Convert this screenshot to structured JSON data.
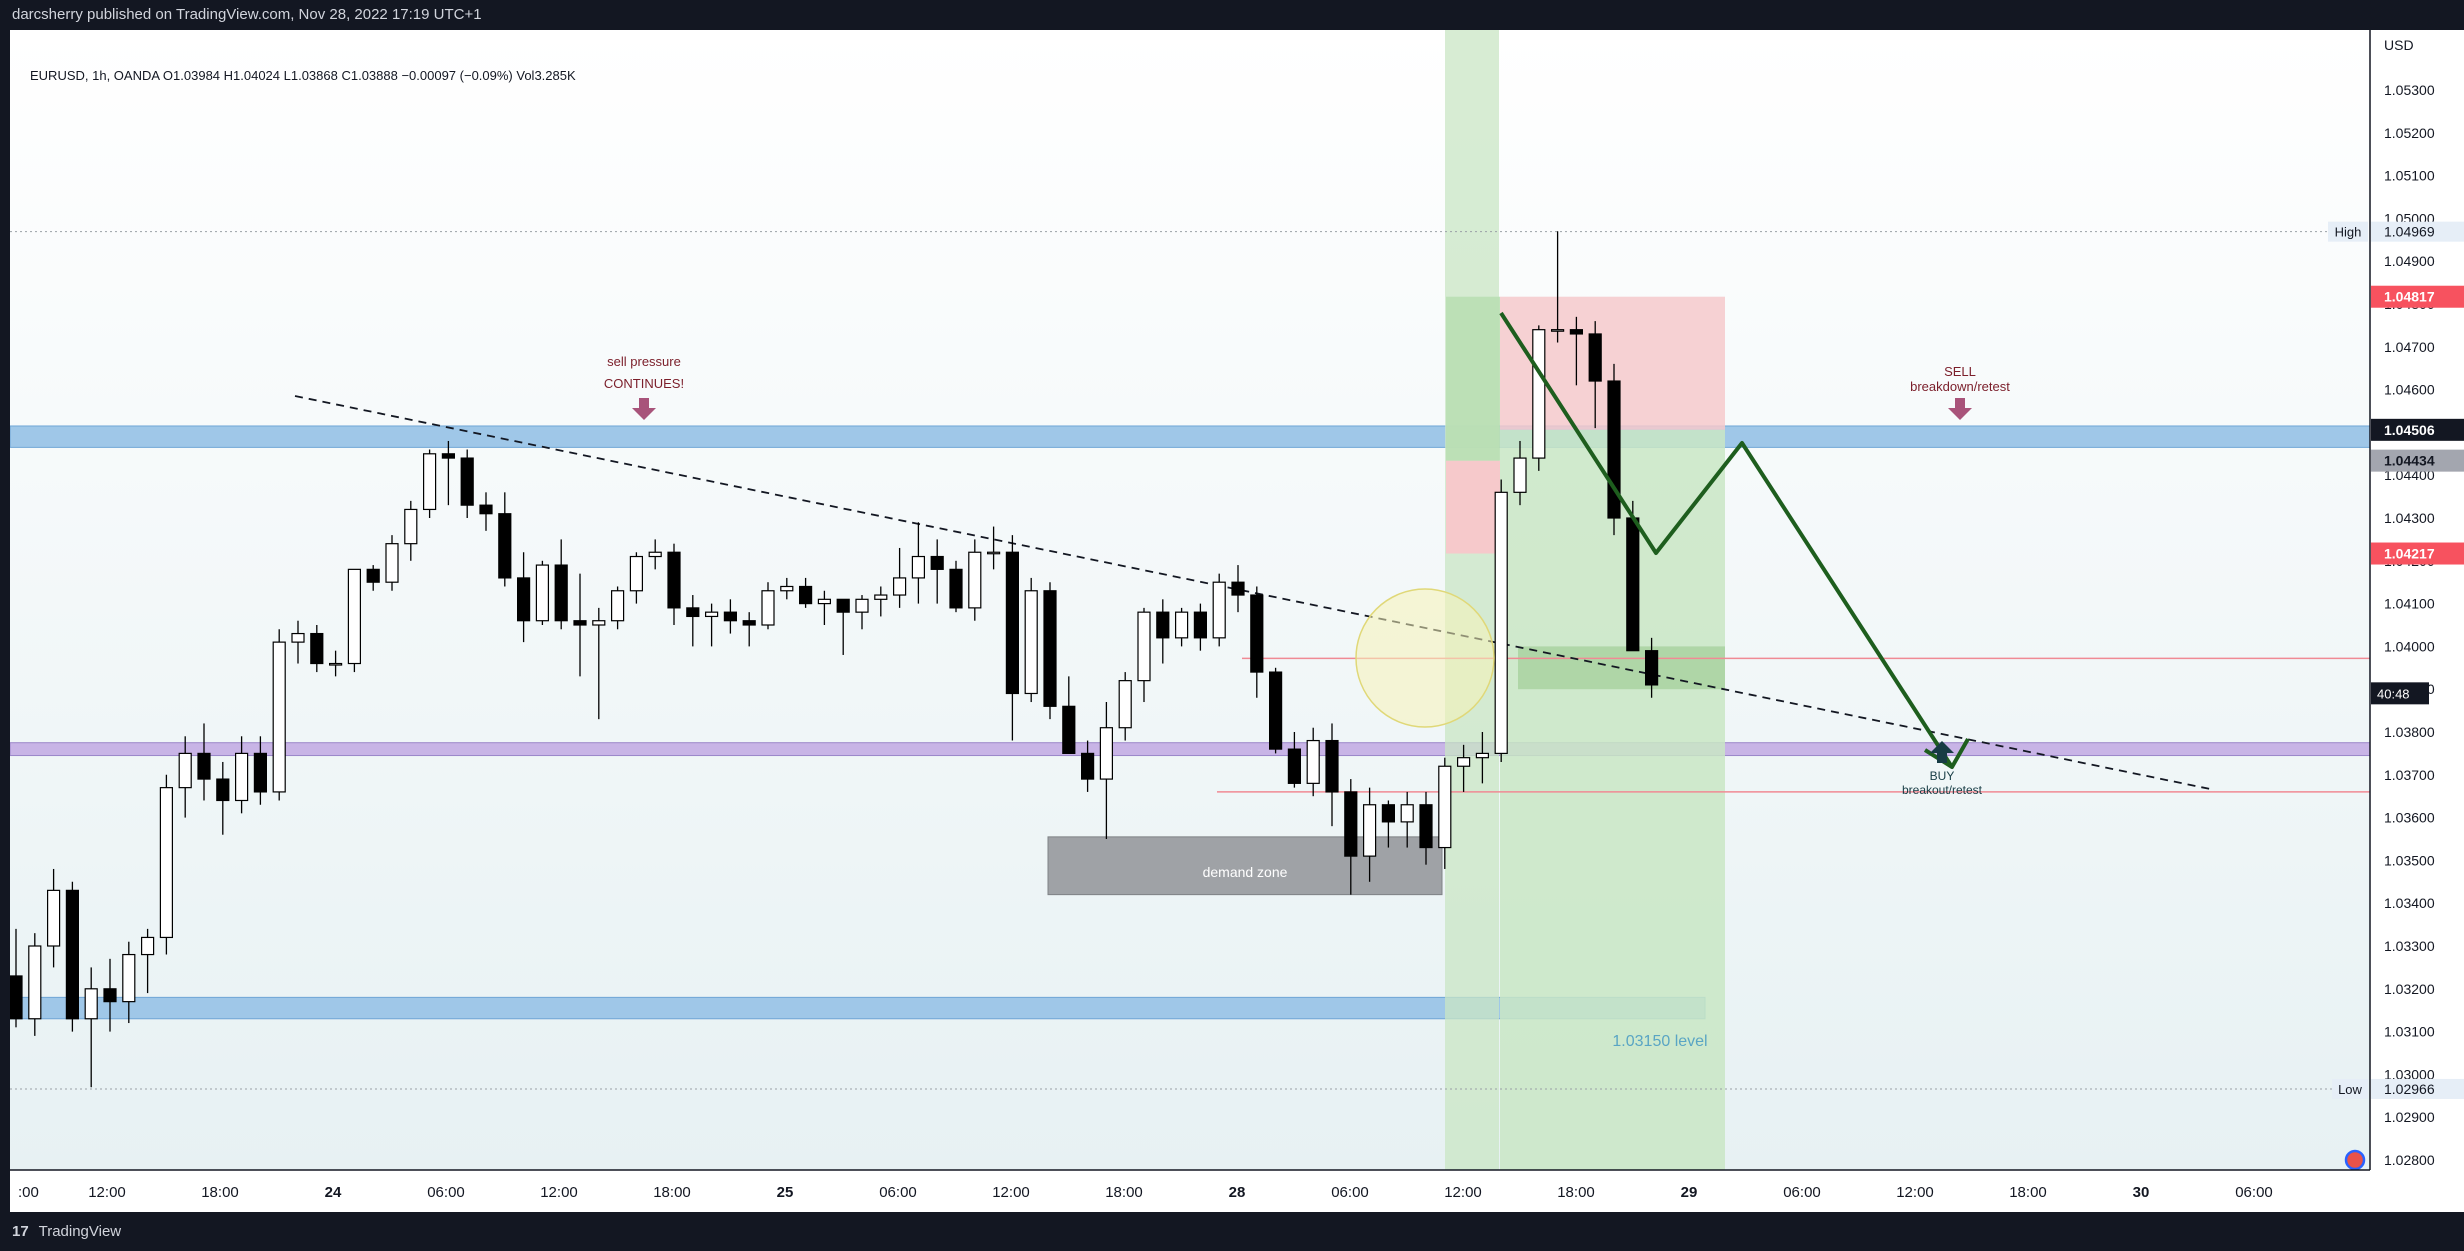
{
  "header": {
    "published": "darcsherry published on TradingView.com, Nov 28, 2022 17:19 UTC+1"
  },
  "footer": {
    "brand": "TradingView",
    "logo_mark": "17"
  },
  "legend": {
    "ohlc": "EURUSD, 1h, OANDA  O1.03984  H1.04024  L1.03868  C1.03888  −0.00097 (−0.09%)  Vol3.285K"
  },
  "price_axis": {
    "currency": "USD",
    "ticks": [
      "1.05300",
      "1.05200",
      "1.05100",
      "1.05000",
      "1.04900",
      "1.04800",
      "1.04700",
      "1.04600",
      "1.04500",
      "1.04400",
      "1.04300",
      "1.04200",
      "1.04100",
      "1.04000",
      "1.03900",
      "1.03800",
      "1.03700",
      "1.03600",
      "1.03500",
      "1.03400",
      "1.03300",
      "1.03200",
      "1.03100",
      "1.03000",
      "1.02900",
      "1.02800"
    ],
    "high_label": "High",
    "high_value": "1.04969",
    "low_label": "Low",
    "low_value": "1.02966",
    "badges": [
      {
        "value": "1.04817",
        "price": 1.04817,
        "bg": "#f7525f",
        "fg": "#ffffff"
      },
      {
        "value": "1.04506",
        "price": 1.04506,
        "bg": "#131722",
        "fg": "#ffffff"
      },
      {
        "value": "1.04434",
        "price": 1.04434,
        "bg": "#a3a6af",
        "fg": "#131722"
      },
      {
        "value": "1.04217",
        "price": 1.04217,
        "bg": "#f7525f",
        "fg": "#ffffff"
      }
    ],
    "countdown": "40:48"
  },
  "time_axis": {
    "labels": [
      ":00",
      "12:00",
      "18:00",
      "24",
      "06:00",
      "12:00",
      "18:00",
      "25",
      "06:00",
      "12:00",
      "18:00",
      "28",
      "06:00",
      "12:00",
      "18:00",
      "29",
      "06:00",
      "12:00",
      "18:00",
      "30",
      "06:00"
    ],
    "bold": [
      "24",
      "25",
      "28",
      "29",
      "30"
    ]
  },
  "annotations": {
    "sell_pressure_line1": "sell pressure",
    "sell_pressure_line2": "CONTINUES!",
    "sell_line1": "SELL",
    "sell_line2": "breakdown/retest",
    "buy_line1": "BUY",
    "buy_line2": "breakout/retest",
    "demand_zone": "demand zone",
    "level_label": "1.03150 level"
  },
  "colors": {
    "bull": "#ffffff",
    "bear": "#000000",
    "wick": "#000000",
    "blue_zone": "#9fc7e8",
    "purple_zone": "#c8b4e6",
    "green_zone": "#c9e6c4",
    "red_zone": "#f6c9cb",
    "path": "#1e5e1e",
    "annotation": "#7b1e2a",
    "arrow": "#a8537a"
  },
  "chart_data": {
    "type": "candlestick",
    "symbol": "EURUSD",
    "interval": "1h",
    "ylim": [
      1.028,
      1.054
    ],
    "candles": [
      [
        1.0323,
        1.0334,
        1.0311,
        1.0313
      ],
      [
        1.0313,
        1.0333,
        1.0309,
        1.033
      ],
      [
        1.033,
        1.0348,
        1.0325,
        1.0343
      ],
      [
        1.0343,
        1.0345,
        1.031,
        1.0313
      ],
      [
        1.0313,
        1.0325,
        1.0297,
        1.032
      ],
      [
        1.032,
        1.0327,
        1.031,
        1.0317
      ],
      [
        1.0317,
        1.0331,
        1.0312,
        1.0328
      ],
      [
        1.0328,
        1.0334,
        1.0319,
        1.0332
      ],
      [
        1.0332,
        1.037,
        1.0328,
        1.0367
      ],
      [
        1.0367,
        1.0379,
        1.036,
        1.0375
      ],
      [
        1.0375,
        1.0382,
        1.0364,
        1.0369
      ],
      [
        1.0369,
        1.0373,
        1.0356,
        1.0364
      ],
      [
        1.0364,
        1.0379,
        1.0361,
        1.0375
      ],
      [
        1.0375,
        1.0379,
        1.0363,
        1.0366
      ],
      [
        1.0366,
        1.0404,
        1.0364,
        1.0401
      ],
      [
        1.0401,
        1.0406,
        1.0396,
        1.0403
      ],
      [
        1.0403,
        1.0405,
        1.0394,
        1.0396
      ],
      [
        1.0396,
        1.0399,
        1.0393,
        1.0396
      ],
      [
        1.0396,
        1.0418,
        1.0394,
        1.0418
      ],
      [
        1.0418,
        1.0419,
        1.0413,
        1.0415
      ],
      [
        1.0415,
        1.0426,
        1.0413,
        1.0424
      ],
      [
        1.0424,
        1.0434,
        1.042,
        1.0432
      ],
      [
        1.0432,
        1.0446,
        1.043,
        1.0445
      ],
      [
        1.0445,
        1.0448,
        1.0433,
        1.0444
      ],
      [
        1.0444,
        1.0446,
        1.043,
        1.0433
      ],
      [
        1.0433,
        1.0436,
        1.0427,
        1.0431
      ],
      [
        1.0431,
        1.0436,
        1.0414,
        1.0416
      ],
      [
        1.0416,
        1.0422,
        1.0401,
        1.0406
      ],
      [
        1.0406,
        1.042,
        1.0405,
        1.0419
      ],
      [
        1.0419,
        1.0425,
        1.0404,
        1.0406
      ],
      [
        1.0406,
        1.0417,
        1.0393,
        1.0405
      ],
      [
        1.0405,
        1.0409,
        1.0383,
        1.0406
      ],
      [
        1.0406,
        1.0414,
        1.0404,
        1.0413
      ],
      [
        1.0413,
        1.0422,
        1.041,
        1.0421
      ],
      [
        1.0421,
        1.0425,
        1.0418,
        1.0422
      ],
      [
        1.0422,
        1.0424,
        1.0405,
        1.0409
      ],
      [
        1.0409,
        1.0412,
        1.04,
        1.0407
      ],
      [
        1.0407,
        1.041,
        1.04,
        1.0408
      ],
      [
        1.0408,
        1.0411,
        1.0403,
        1.0406
      ],
      [
        1.0406,
        1.0408,
        1.04,
        1.0405
      ],
      [
        1.0405,
        1.0415,
        1.0404,
        1.0413
      ],
      [
        1.0413,
        1.0416,
        1.0411,
        1.0414
      ],
      [
        1.0414,
        1.0416,
        1.0409,
        1.041
      ],
      [
        1.041,
        1.0413,
        1.0405,
        1.0411
      ],
      [
        1.0411,
        1.0411,
        1.0398,
        1.0408
      ],
      [
        1.0408,
        1.0412,
        1.0404,
        1.0411
      ],
      [
        1.0411,
        1.0414,
        1.0407,
        1.0412
      ],
      [
        1.0412,
        1.0423,
        1.0409,
        1.0416
      ],
      [
        1.0416,
        1.0429,
        1.041,
        1.0421
      ],
      [
        1.0421,
        1.0425,
        1.041,
        1.0418
      ],
      [
        1.0418,
        1.042,
        1.0408,
        1.0409
      ],
      [
        1.0409,
        1.0425,
        1.0406,
        1.0422
      ],
      [
        1.0422,
        1.0428,
        1.0418,
        1.0422
      ],
      [
        1.0422,
        1.0426,
        1.0378,
        1.0389
      ],
      [
        1.0389,
        1.0416,
        1.0387,
        1.0413
      ],
      [
        1.0413,
        1.0415,
        1.0383,
        1.0386
      ],
      [
        1.0386,
        1.0393,
        1.0376,
        1.0375
      ],
      [
        1.0375,
        1.0378,
        1.0366,
        1.0369
      ],
      [
        1.0369,
        1.0387,
        1.0355,
        1.0381
      ],
      [
        1.0381,
        1.0394,
        1.0378,
        1.0392
      ],
      [
        1.0392,
        1.0409,
        1.0387,
        1.0408
      ],
      [
        1.0408,
        1.0411,
        1.0396,
        1.0402
      ],
      [
        1.0402,
        1.0409,
        1.04,
        1.0408
      ],
      [
        1.0408,
        1.041,
        1.0399,
        1.0402
      ],
      [
        1.0402,
        1.0417,
        1.04,
        1.0415
      ],
      [
        1.0415,
        1.0419,
        1.0408,
        1.0412
      ],
      [
        1.0412,
        1.0414,
        1.0388,
        1.0394
      ],
      [
        1.0394,
        1.0395,
        1.0375,
        1.0376
      ],
      [
        1.0376,
        1.038,
        1.0367,
        1.0368
      ],
      [
        1.0368,
        1.0381,
        1.0365,
        1.0378
      ],
      [
        1.0378,
        1.0382,
        1.0358,
        1.0366
      ],
      [
        1.0366,
        1.0369,
        1.0342,
        1.0351
      ],
      [
        1.0351,
        1.0367,
        1.0345,
        1.0363
      ],
      [
        1.0363,
        1.0364,
        1.0353,
        1.0359
      ],
      [
        1.0359,
        1.0366,
        1.0353,
        1.0363
      ],
      [
        1.0363,
        1.0366,
        1.0349,
        1.0353
      ],
      [
        1.0353,
        1.0374,
        1.0348,
        1.0372
      ],
      [
        1.0372,
        1.0377,
        1.0366,
        1.0374
      ],
      [
        1.0374,
        1.038,
        1.0368,
        1.0375
      ],
      [
        1.0375,
        1.0439,
        1.0373,
        1.0436
      ],
      [
        1.0436,
        1.0448,
        1.0433,
        1.0444
      ],
      [
        1.0444,
        1.0475,
        1.0441,
        1.0474
      ],
      [
        1.0474,
        1.0497,
        1.0471,
        1.0474
      ],
      [
        1.0474,
        1.0477,
        1.0461,
        1.0473
      ],
      [
        1.0473,
        1.0476,
        1.0451,
        1.0462
      ],
      [
        1.0462,
        1.0466,
        1.0426,
        1.043
      ],
      [
        1.043,
        1.0434,
        1.0401,
        1.0399
      ],
      [
        1.0399,
        1.0402,
        1.0388,
        1.0391
      ]
    ],
    "trendline": [
      [
        1.0456,
        1.0386
      ]
    ],
    "zones": {
      "blue_upper": [
        1.04465,
        1.04515
      ],
      "purple": [
        1.03745,
        1.03775
      ],
      "blue_lower": [
        1.0313,
        1.0318
      ],
      "demand": [
        1.0342,
        1.03555
      ]
    },
    "horizontal_levels": [
      1.03972,
      1.0366
    ],
    "high": 1.04969,
    "low": 1.02966
  }
}
